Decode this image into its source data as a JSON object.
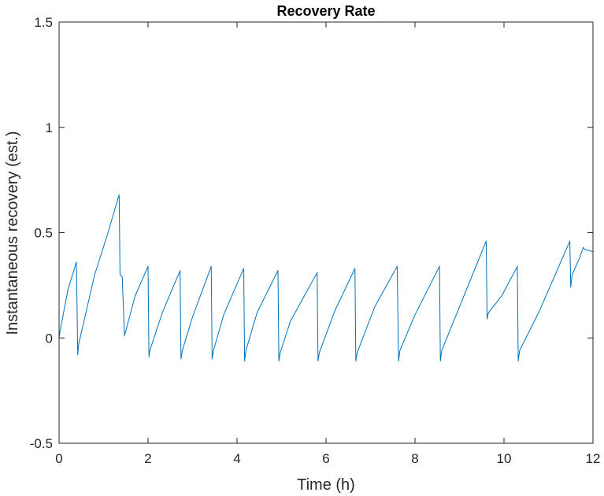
{
  "chart_data": {
    "type": "line",
    "title": "Recovery Rate",
    "xlabel": "Time (h)",
    "ylabel": "Instantaneous recovery (est.)",
    "xlim": [
      0,
      12
    ],
    "ylim": [
      -0.5,
      1.5
    ],
    "xticks": [
      0,
      2,
      4,
      6,
      8,
      10,
      12
    ],
    "yticks": [
      -0.5,
      0,
      0.5,
      1,
      1.5
    ],
    "xtick_labels": [
      "0",
      "2",
      "4",
      "6",
      "8",
      "10",
      "12"
    ],
    "ytick_labels": [
      "-0.5",
      "0",
      "0.5",
      "1",
      "1.5"
    ],
    "grid": false,
    "color": "#0072bd",
    "series": [
      {
        "x": [
          0.0,
          0.0,
          0.02,
          0.2,
          0.39,
          0.42,
          0.44,
          0.8,
          1.1,
          1.35,
          1.37,
          1.42,
          1.47,
          1.71,
          2.0,
          2.02,
          2.04,
          2.32,
          2.72,
          2.74,
          2.77,
          3.0,
          3.42,
          3.44,
          3.47,
          3.7,
          4.15,
          4.17,
          4.2,
          4.45,
          4.92,
          4.94,
          4.97,
          5.2,
          5.8,
          5.82,
          5.85,
          6.2,
          6.65,
          6.67,
          6.7,
          7.1,
          7.6,
          7.63,
          7.66,
          8.0,
          8.55,
          8.57,
          8.6,
          9.1,
          9.6,
          9.62,
          9.65,
          9.95,
          10.3,
          10.32,
          10.35,
          10.8,
          11.48,
          11.5,
          11.53,
          11.7,
          11.78,
          11.82,
          12.0
        ],
        "y": [
          -0.08,
          0.0,
          0.03,
          0.23,
          0.36,
          -0.08,
          -0.03,
          0.3,
          0.5,
          0.68,
          0.3,
          0.29,
          0.01,
          0.2,
          0.34,
          -0.09,
          -0.06,
          0.12,
          0.32,
          -0.1,
          -0.06,
          0.1,
          0.34,
          -0.1,
          -0.06,
          0.11,
          0.33,
          -0.11,
          -0.06,
          0.12,
          0.32,
          -0.11,
          -0.07,
          0.08,
          0.31,
          -0.11,
          -0.07,
          0.13,
          0.33,
          -0.11,
          -0.07,
          0.15,
          0.34,
          -0.11,
          -0.06,
          0.11,
          0.34,
          -0.11,
          -0.06,
          0.2,
          0.46,
          0.09,
          0.12,
          0.2,
          0.34,
          -0.11,
          -0.06,
          0.13,
          0.46,
          0.24,
          0.3,
          0.38,
          0.43,
          0.42,
          0.41
        ]
      }
    ]
  }
}
